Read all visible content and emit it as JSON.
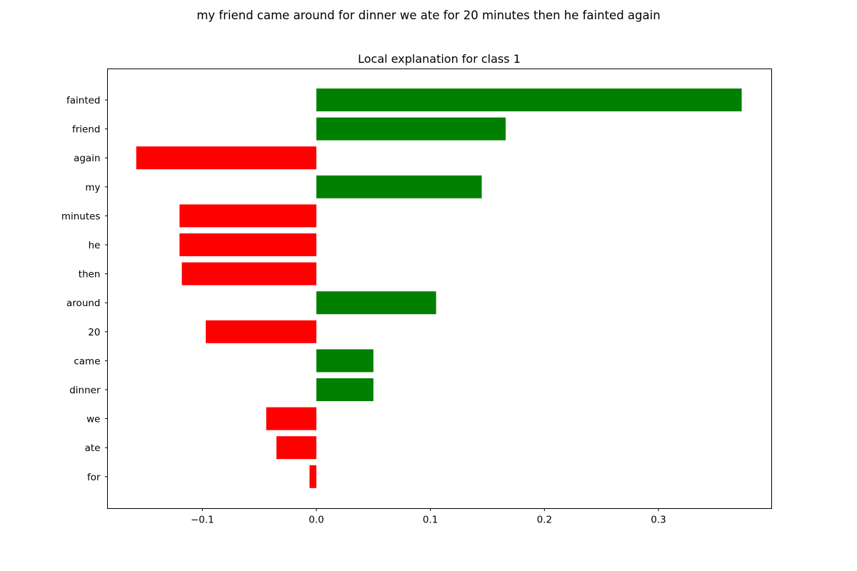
{
  "figure": {
    "suptitle": "my friend came around for dinner we ate for 20 minutes then he fainted again"
  },
  "chart_data": {
    "type": "bar",
    "orientation": "horizontal",
    "title": "Local explanation for class 1",
    "xlabel": "",
    "ylabel": "",
    "categories": [
      "fainted",
      "friend",
      "again",
      "my",
      "minutes",
      "he",
      "then",
      "around",
      "20",
      "came",
      "dinner",
      "we",
      "ate",
      "for"
    ],
    "values": [
      0.373,
      0.166,
      -0.158,
      0.145,
      -0.12,
      -0.12,
      -0.118,
      0.105,
      -0.097,
      0.05,
      0.05,
      -0.044,
      -0.035,
      -0.006
    ],
    "xlim": [
      -0.183,
      0.4
    ],
    "xticks": [
      -0.1,
      0.0,
      0.1,
      0.2,
      0.3
    ],
    "xtick_labels": [
      "−0.1",
      "0.0",
      "0.1",
      "0.2",
      "0.3"
    ],
    "colors": {
      "positive": "#008000",
      "negative": "#ff0000"
    },
    "grid": false,
    "legend": "none"
  }
}
